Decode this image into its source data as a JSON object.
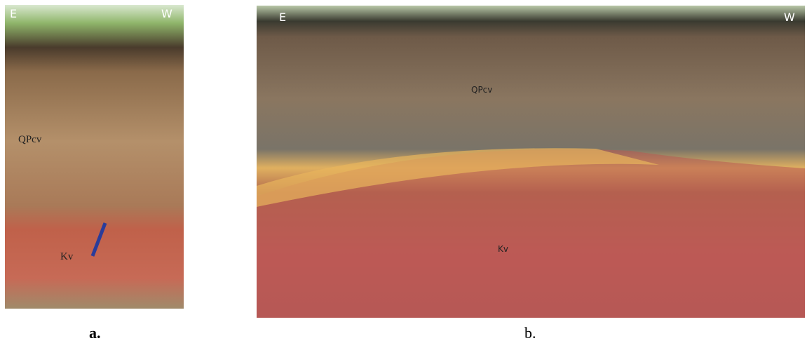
{
  "panels": [
    {
      "labels": {
        "left": "E",
        "right": "W",
        "upper_unit": "QPcv",
        "lower_unit": "Kv"
      },
      "caption": "a."
    },
    {
      "labels": {
        "left": "E",
        "right": "W",
        "upper_unit": "QPcv",
        "lower_unit": "Kv"
      },
      "caption": "b."
    }
  ]
}
